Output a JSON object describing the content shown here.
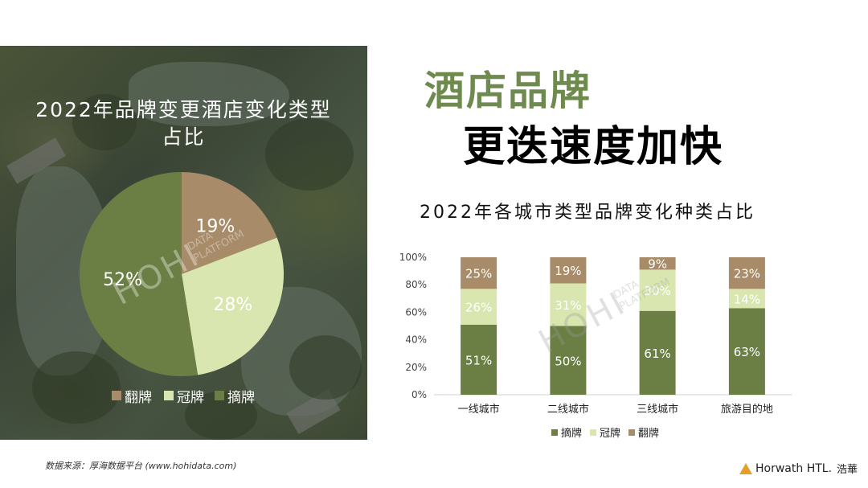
{
  "headline": {
    "line1": "酒店品牌",
    "line2": "更迭速度加快"
  },
  "pie_panel": {
    "title_line1": "2022年品牌变更酒店变化类型",
    "title_line2": "占比",
    "legend": [
      "翻牌",
      "冠牌",
      "摘牌"
    ]
  },
  "bar_panel": {
    "title": "2022年各城市类型品牌变化种类占比",
    "legend": [
      "摘牌",
      "冠牌",
      "翻牌"
    ]
  },
  "watermark": {
    "main": "HOHI",
    "sub1": "DATA",
    "sub2": "PLATFORM"
  },
  "colors": {
    "zhai": "#6b7f45",
    "guan": "#d9e6b0",
    "fan": "#a88c69",
    "headline_green": "#6e8a4e"
  },
  "footer": {
    "source": "数据来源：厚海数据平台 (www.hohidata.com)",
    "logo_name": "Horwath HTL.",
    "logo_cn": "浩華"
  },
  "chart_data": [
    {
      "type": "pie",
      "title": "2022年品牌变更酒店变化类型占比",
      "slices": [
        {
          "label": "翻牌",
          "value": 19,
          "display": "19%",
          "color": "#a88c69"
        },
        {
          "label": "冠牌",
          "value": 28,
          "display": "28%",
          "color": "#d9e6b0"
        },
        {
          "label": "摘牌",
          "value": 52,
          "display": "52%",
          "color": "#6b7f45"
        }
      ]
    },
    {
      "type": "bar",
      "stacked": true,
      "title": "2022年各城市类型品牌变化种类占比",
      "categories": [
        "一线城市",
        "二线城市",
        "三线城市",
        "旅游目的地"
      ],
      "ylim": [
        0,
        100
      ],
      "yticks": [
        "0%",
        "20%",
        "40%",
        "60%",
        "80%",
        "100%"
      ],
      "series": [
        {
          "name": "摘牌",
          "color": "#6b7f45",
          "values": [
            51,
            50,
            61,
            63
          ],
          "labels": [
            "51%",
            "50%",
            "61%",
            "63%"
          ]
        },
        {
          "name": "冠牌",
          "color": "#d9e6b0",
          "values": [
            26,
            31,
            30,
            14
          ],
          "labels": [
            "26%",
            "31%",
            "30%",
            "14%"
          ]
        },
        {
          "name": "翻牌",
          "color": "#a88c69",
          "values": [
            25,
            19,
            9,
            23
          ],
          "labels": [
            "25%",
            "19%",
            "9%",
            "23%"
          ]
        }
      ]
    }
  ]
}
